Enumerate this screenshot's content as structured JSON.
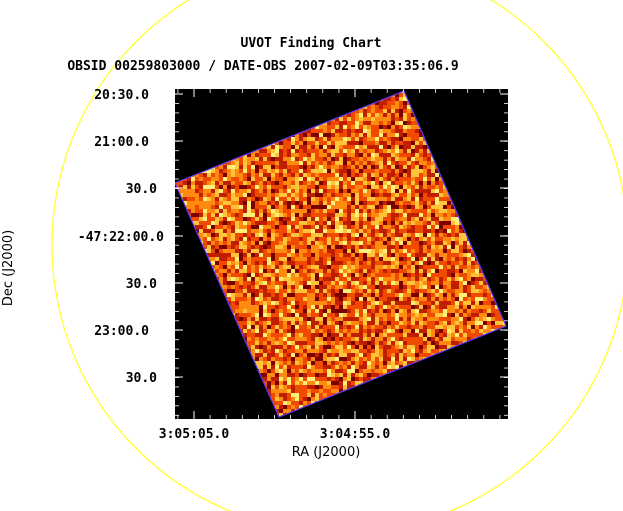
{
  "chart_data": {
    "type": "heatmap",
    "title": "UVOT Finding Chart",
    "subtitle": "OBSID 00259803000 / DATE-OBS 2007-02-09T03:35:06.9",
    "xlabel": "RA (J2000)",
    "ylabel": "Dec (J2000)",
    "x_ticks": [
      "3:05:05.0",
      "3:04:55.0"
    ],
    "y_ticks": [
      "20:30.0",
      "21:00.0",
      "30.0",
      "-47:22:00.0",
      "30.0",
      "23:00.0",
      "30.0"
    ],
    "colormap": [
      "#7a0000",
      "#c01e00",
      "#f04a00",
      "#ff8a10",
      "#ffc43a",
      "#fff07a"
    ],
    "background_color": "#000000",
    "field_circle_color": "#ffff33",
    "frame_edge_color": "#5a3cff"
  }
}
